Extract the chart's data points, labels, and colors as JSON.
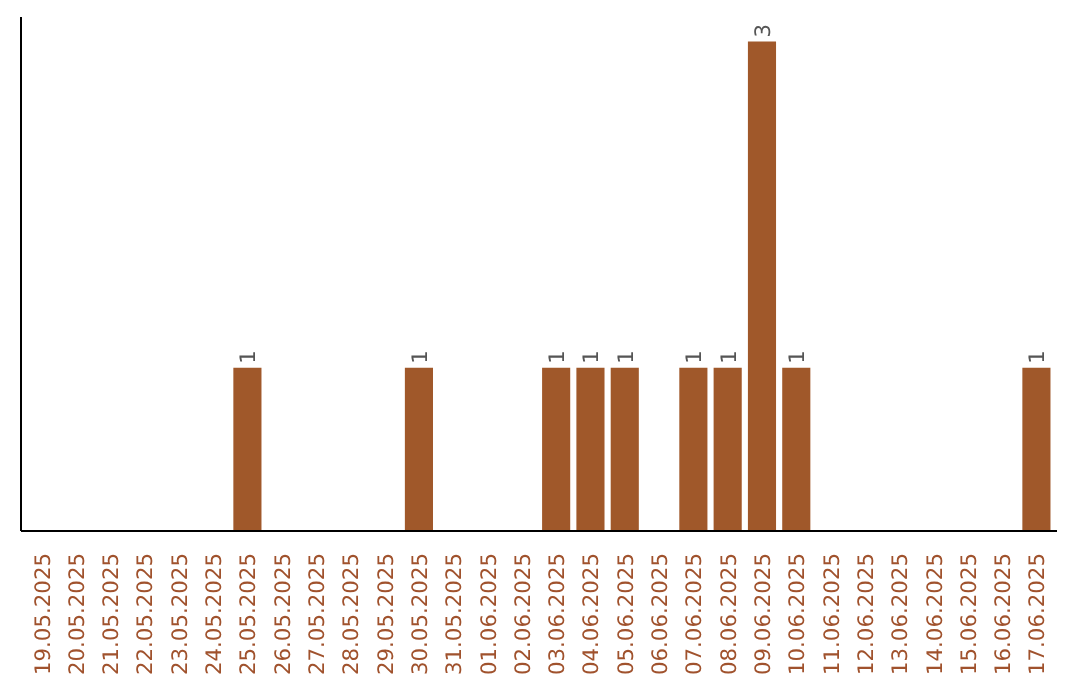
{
  "chart_data": {
    "type": "bar",
    "categories": [
      "19.05.2025",
      "20.05.2025",
      "21.05.2025",
      "22.05.2025",
      "23.05.2025",
      "24.05.2025",
      "25.05.2025",
      "26.05.2025",
      "27.05.2025",
      "28.05.2025",
      "29.05.2025",
      "30.05.2025",
      "31.05.2025",
      "01.06.2025",
      "02.06.2025",
      "03.06.2025",
      "04.06.2025",
      "05.06.2025",
      "06.06.2025",
      "07.06.2025",
      "08.06.2025",
      "09.06.2025",
      "10.06.2025",
      "11.06.2025",
      "12.06.2025",
      "13.06.2025",
      "14.06.2025",
      "15.06.2025",
      "16.06.2025",
      "17.06.2025"
    ],
    "values": [
      0,
      0,
      0,
      0,
      0,
      0,
      1,
      0,
      0,
      0,
      0,
      1,
      0,
      0,
      0,
      1,
      1,
      1,
      0,
      1,
      1,
      3,
      1,
      0,
      0,
      0,
      0,
      0,
      0,
      1
    ],
    "value_labels": [
      null,
      null,
      null,
      null,
      null,
      null,
      "1",
      null,
      null,
      null,
      null,
      "1",
      null,
      null,
      null,
      "1",
      "1",
      "1",
      null,
      "1",
      "1",
      "3",
      "1",
      null,
      null,
      null,
      null,
      null,
      null,
      "1"
    ],
    "color": "#a0582a",
    "tick_labels": "x"
  }
}
